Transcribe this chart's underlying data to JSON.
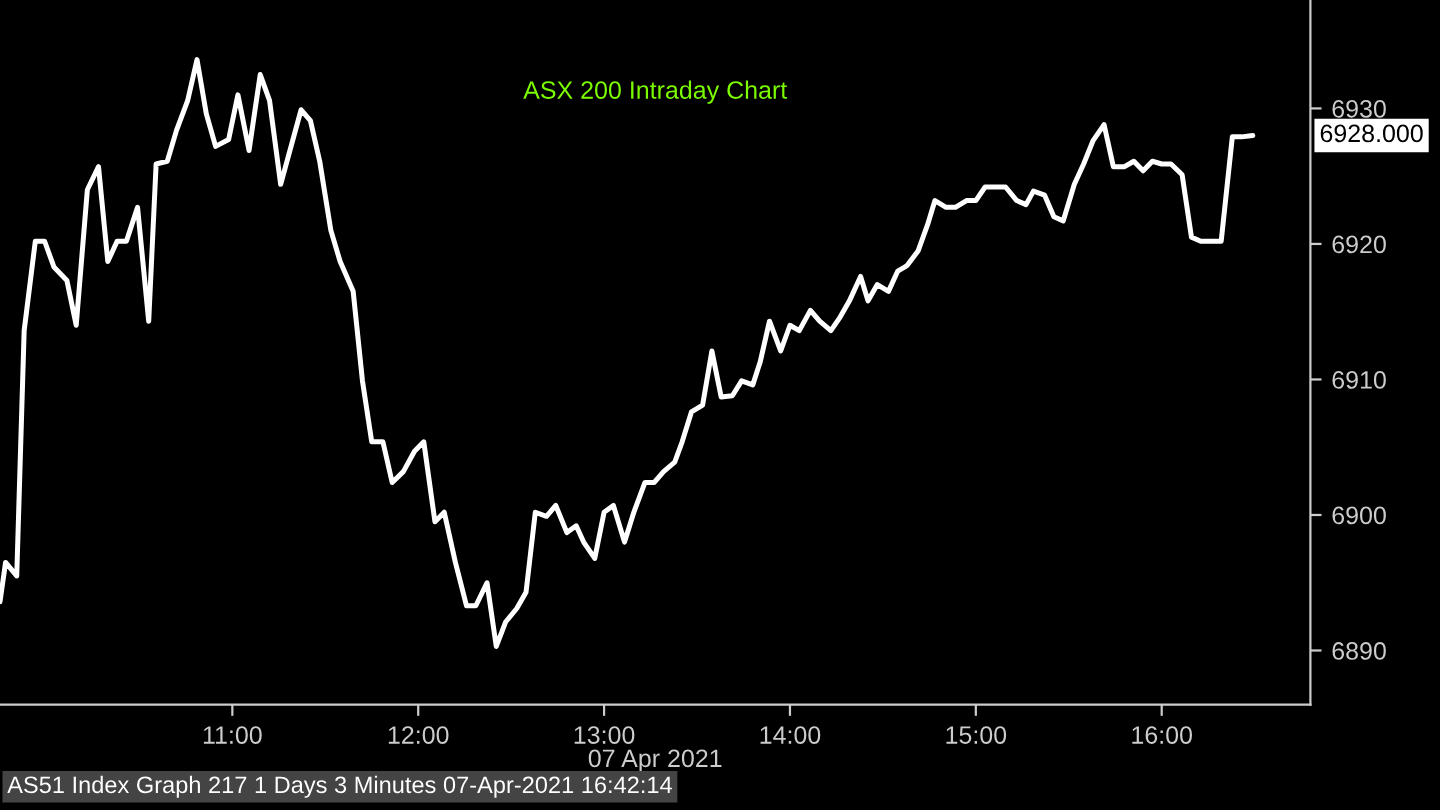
{
  "chart_data": {
    "type": "line",
    "title": "ASX 200 Intraday Chart",
    "xlabel": "07 Apr 2021",
    "x": [
      9.75,
      9.78,
      9.84,
      9.88,
      9.94,
      9.99,
      10.04,
      10.11,
      10.16,
      10.22,
      10.28,
      10.33,
      10.38,
      10.43,
      10.49,
      10.55,
      10.59,
      10.65,
      10.7,
      10.76,
      10.81,
      10.86,
      10.91,
      10.98,
      11.03,
      11.09,
      11.15,
      11.2,
      11.26,
      11.31,
      11.37,
      11.42,
      11.47,
      11.53,
      11.58,
      11.65,
      11.7,
      11.75,
      11.81,
      11.86,
      11.92,
      11.98,
      12.03,
      12.09,
      12.14,
      12.2,
      12.26,
      12.31,
      12.37,
      12.42,
      12.47,
      12.53,
      12.58,
      12.63,
      12.69,
      12.74,
      12.8,
      12.85,
      12.89,
      12.95,
      13.0,
      13.05,
      13.11,
      13.16,
      13.22,
      13.27,
      13.32,
      13.38,
      13.42,
      13.47,
      13.53,
      13.58,
      13.63,
      13.69,
      13.74,
      13.8,
      13.84,
      13.89,
      13.95,
      14.0,
      14.05,
      14.11,
      14.16,
      14.22,
      14.27,
      14.32,
      14.38,
      14.42,
      14.47,
      14.53,
      14.58,
      14.63,
      14.69,
      14.74,
      14.78,
      14.84,
      14.89,
      14.95,
      15.0,
      15.05,
      15.11,
      15.16,
      15.22,
      15.27,
      15.31,
      15.37,
      15.42,
      15.47,
      15.53,
      15.58,
      15.63,
      15.69,
      15.74,
      15.8,
      15.85,
      15.9,
      15.95,
      16.0,
      16.05,
      16.11,
      16.16,
      16.21,
      16.27,
      16.32,
      16.38,
      16.43,
      16.49
    ],
    "series": [
      {
        "color": "#ffffff",
        "values": [
          6893.6,
          6896.5,
          6895.5,
          6913.6,
          6920.2,
          6920.2,
          6918.3,
          6917.3,
          6914,
          6924,
          6925.7,
          6918.7,
          6920.2,
          6920.2,
          6922.7,
          6914.3,
          6925.9,
          6926.1,
          6928.4,
          6930.6,
          6933.6,
          6929.6,
          6927.2,
          6927.7,
          6931,
          6926.9,
          6932.5,
          6930.6,
          6924.4,
          6926.9,
          6929.9,
          6929.1,
          6926.1,
          6921,
          6918.7,
          6916.5,
          6909.9,
          6905.4,
          6905.4,
          6902.4,
          6903.2,
          6904.7,
          6905.4,
          6899.5,
          6900.2,
          6896.5,
          6893.3,
          6893.3,
          6895,
          6890.3,
          6892.1,
          6893.1,
          6894.3,
          6900.2,
          6899.9,
          6900.7,
          6898.7,
          6899.2,
          6898,
          6896.8,
          6900.2,
          6900.7,
          6898,
          6900.2,
          6902.4,
          6902.4,
          6903.2,
          6903.9,
          6905.4,
          6907.6,
          6908.1,
          6912.1,
          6908.7,
          6908.8,
          6909.9,
          6909.6,
          6911.3,
          6914.3,
          6912.1,
          6914,
          6913.6,
          6915.1,
          6914.3,
          6913.6,
          6914.6,
          6915.8,
          6917.6,
          6915.8,
          6917,
          6916.5,
          6918,
          6918.4,
          6919.5,
          6921.4,
          6923.2,
          6922.7,
          6922.7,
          6923.2,
          6923.2,
          6924.2,
          6924.2,
          6924.2,
          6923.2,
          6922.9,
          6923.9,
          6923.6,
          6922,
          6921.7,
          6924.4,
          6925.9,
          6927.6,
          6928.8,
          6925.7,
          6925.7,
          6926.1,
          6925.4,
          6926.1,
          6925.9,
          6925.9,
          6925.1,
          6920.5,
          6920.2,
          6920.2,
          6920.2,
          6927.9,
          6927.9,
          6928
        ]
      }
    ],
    "xlim": [
      9.75,
      16.8
    ],
    "ylim": [
      6886,
      6938
    ],
    "xticks": [
      {
        "value": 11,
        "label": "11:00"
      },
      {
        "value": 12,
        "label": "12:00"
      },
      {
        "value": 13,
        "label": "13:00"
      },
      {
        "value": 14,
        "label": "14:00"
      },
      {
        "value": 15,
        "label": "15:00"
      },
      {
        "value": 16,
        "label": "16:00"
      }
    ],
    "yticks": [
      6890,
      6900,
      6910,
      6920,
      6930
    ],
    "annotations": [
      {
        "text": "6928.000",
        "x": 16.49,
        "y": 6928
      },
      "AS51 Index Graph 217 1 Days 3 Minutes 07-Apr-2021 16:42:14"
    ],
    "grid": false,
    "legend": false
  }
}
